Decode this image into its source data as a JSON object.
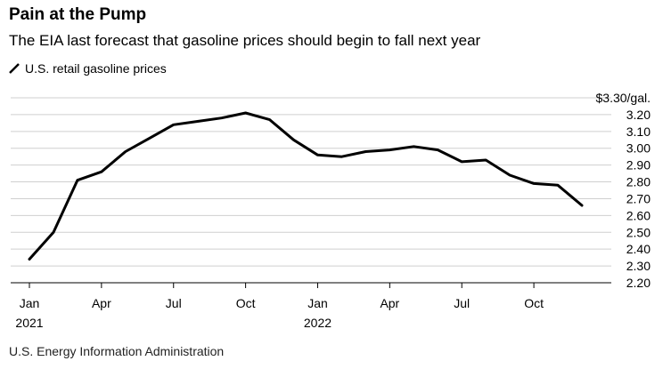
{
  "title": "Pain at the Pump",
  "subtitle": "The EIA last forecast that gasoline prices should begin to fall next year",
  "source": "U.S. Energy Information Administration",
  "chart_data": {
    "type": "line",
    "title": "Pain at the Pump",
    "subtitle": "The EIA last forecast that gasoline prices should begin to fall next year",
    "series": [
      {
        "name": "U.S. retail gasoline prices",
        "color": "#000000",
        "x": [
          "2021-01",
          "2021-02",
          "2021-03",
          "2021-04",
          "2021-05",
          "2021-06",
          "2021-07",
          "2021-08",
          "2021-09",
          "2021-10",
          "2021-11",
          "2021-12",
          "2022-01",
          "2022-02",
          "2022-03",
          "2022-04",
          "2022-05",
          "2022-06",
          "2022-07",
          "2022-08",
          "2022-09",
          "2022-10",
          "2022-11",
          "2022-12"
        ],
        "values": [
          2.34,
          2.5,
          2.81,
          2.86,
          2.98,
          3.06,
          3.14,
          3.16,
          3.18,
          3.21,
          3.17,
          3.05,
          2.96,
          2.95,
          2.98,
          2.99,
          3.01,
          2.99,
          2.92,
          2.93,
          2.84,
          2.79,
          2.78,
          2.66
        ]
      }
    ],
    "ylim": [
      2.2,
      3.3
    ],
    "y_ticks": [
      "$3.30/gal.",
      "3.20",
      "3.10",
      "3.00",
      "2.90",
      "2.80",
      "2.70",
      "2.60",
      "2.50",
      "2.40",
      "2.30",
      "2.20"
    ],
    "y_tick_values": [
      3.3,
      3.2,
      3.1,
      3.0,
      2.9,
      2.8,
      2.7,
      2.6,
      2.5,
      2.4,
      2.3,
      2.2
    ],
    "x_ticks": [
      {
        "month": 0,
        "label": "Jan",
        "year": "2021"
      },
      {
        "month": 3,
        "label": "Apr",
        "year": ""
      },
      {
        "month": 6,
        "label": "Jul",
        "year": ""
      },
      {
        "month": 9,
        "label": "Oct",
        "year": ""
      },
      {
        "month": 12,
        "label": "Jan",
        "year": "2022"
      },
      {
        "month": 15,
        "label": "Apr",
        "year": ""
      },
      {
        "month": 18,
        "label": "Jul",
        "year": ""
      },
      {
        "month": 21,
        "label": "Oct",
        "year": ""
      }
    ],
    "grid": "horizontal",
    "legend_placement": "top-left"
  }
}
